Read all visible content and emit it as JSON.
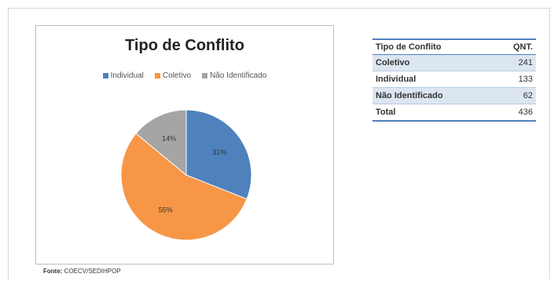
{
  "chart_data": {
    "type": "pie",
    "title": "Tipo de Conflito",
    "categories": [
      "Individual",
      "Coletivo",
      "Não Identificado"
    ],
    "values": [
      31,
      55,
      14
    ],
    "value_labels": [
      "31%",
      "55%",
      "14%"
    ],
    "colors": [
      "#4f81bd",
      "#f79646",
      "#a5a5a5"
    ],
    "legend_position": "top"
  },
  "source_note": {
    "label": "Fonte:",
    "text": "COECV/SEDIHPOP"
  },
  "table": {
    "headers": [
      "Tipo de Conflito",
      "QNT."
    ],
    "rows": [
      {
        "label": "Coletivo",
        "value": "241"
      },
      {
        "label": "Individual",
        "value": "133"
      },
      {
        "label": "Não Identificado",
        "value": "62"
      },
      {
        "label": "Total",
        "value": "436"
      }
    ]
  }
}
